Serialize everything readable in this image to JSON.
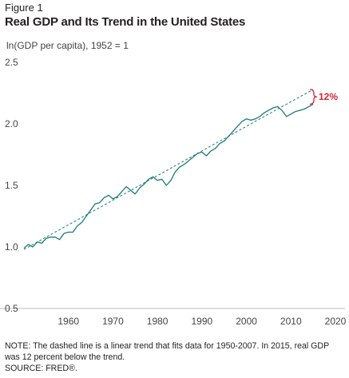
{
  "figure_label": "Figure 1",
  "title": "Real GDP and Its Trend in the United States",
  "y_caption": "ln(GDP per capita), 1952 = 1",
  "annotation": "12%",
  "notes": {
    "line1": "NOTE: The dashed line is a linear trend that fits data for 1950-2007. In 2015, real GDP",
    "line2": "was 12 percent below the trend.",
    "line3": "SOURCE: FRED®."
  },
  "colors": {
    "series": "#1a7a7a",
    "annotation": "#d7262f",
    "axis": "#bcbcbc",
    "text": "#231f20"
  },
  "chart_data": {
    "type": "line",
    "title": "Real GDP and Its Trend in the United States",
    "ylabel": "ln(GDP per capita), 1952 = 1",
    "xlabel": "",
    "xlim": [
      1950,
      2020
    ],
    "ylim": [
      0.5,
      2.5
    ],
    "x_ticks": [
      1960,
      1970,
      1980,
      1990,
      2000,
      2010,
      2020
    ],
    "y_ticks": [
      0.5,
      1.0,
      1.5,
      2.0,
      2.5
    ],
    "y_tick_labels": [
      "0.5",
      "1.0",
      "1.5",
      "2.0",
      "2.5"
    ],
    "grid": false,
    "series": [
      {
        "style": "solid",
        "x": [
          1950,
          1951,
          1952,
          1953,
          1954,
          1955,
          1956,
          1957,
          1958,
          1959,
          1960,
          1961,
          1962,
          1963,
          1964,
          1965,
          1966,
          1967,
          1968,
          1969,
          1970,
          1971,
          1972,
          1973,
          1974,
          1975,
          1976,
          1977,
          1978,
          1979,
          1980,
          1981,
          1982,
          1983,
          1984,
          1985,
          1986,
          1987,
          1988,
          1989,
          1990,
          1991,
          1992,
          1993,
          1994,
          1995,
          1996,
          1997,
          1998,
          1999,
          2000,
          2001,
          2002,
          2003,
          2004,
          2005,
          2006,
          2007,
          2008,
          2009,
          2010,
          2011,
          2012,
          2013,
          2014,
          2015
        ],
        "y": [
          0.99,
          1.02,
          1.0,
          1.04,
          1.03,
          1.07,
          1.08,
          1.08,
          1.06,
          1.11,
          1.12,
          1.12,
          1.17,
          1.2,
          1.25,
          1.3,
          1.35,
          1.36,
          1.4,
          1.42,
          1.39,
          1.41,
          1.45,
          1.49,
          1.46,
          1.43,
          1.48,
          1.51,
          1.55,
          1.57,
          1.54,
          1.55,
          1.5,
          1.54,
          1.61,
          1.65,
          1.67,
          1.7,
          1.73,
          1.76,
          1.77,
          1.74,
          1.78,
          1.8,
          1.84,
          1.86,
          1.9,
          1.94,
          1.98,
          2.02,
          2.04,
          2.03,
          2.04,
          2.06,
          2.09,
          2.11,
          2.13,
          2.14,
          2.11,
          2.06,
          2.08,
          2.1,
          2.11,
          2.12,
          2.14,
          2.16
        ]
      },
      {
        "style": "dashed",
        "x": [
          1950,
          2015
        ],
        "y": [
          0.98,
          2.28
        ]
      }
    ]
  }
}
